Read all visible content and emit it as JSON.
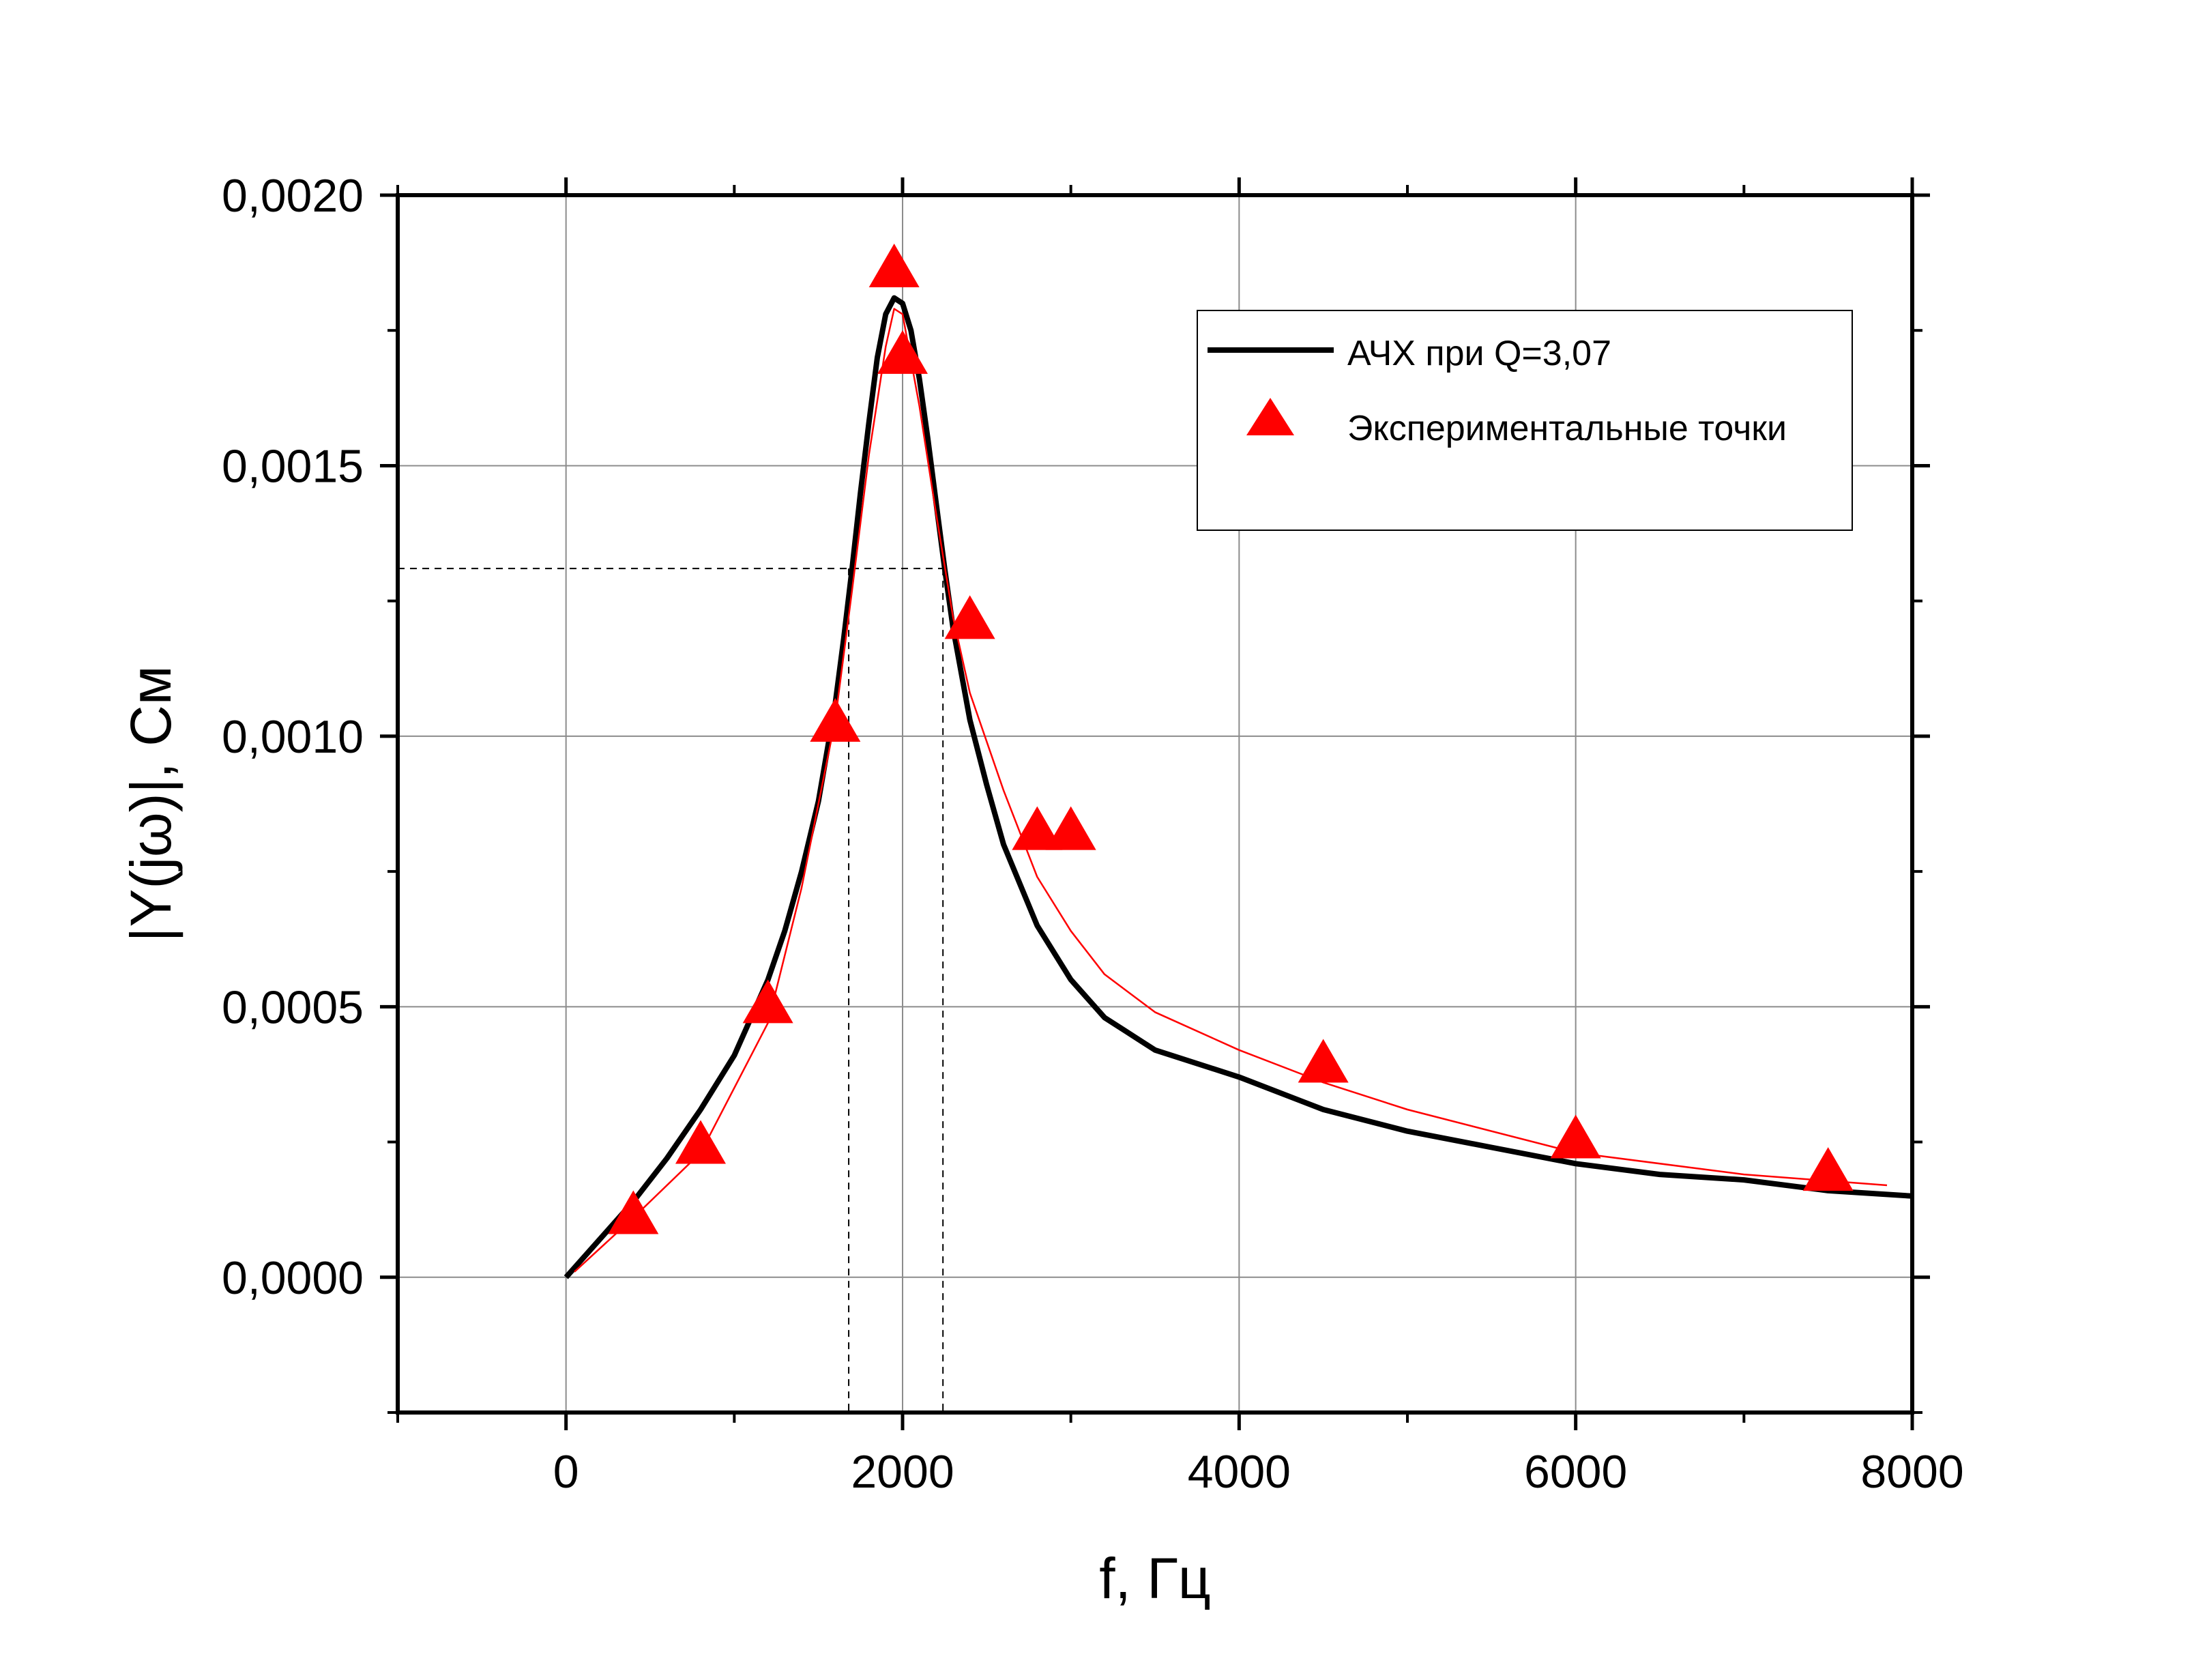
{
  "chart_data": {
    "type": "line",
    "xlabel": "f, Гц",
    "ylabel": "|Y(jω)|, См",
    "xlim": [
      -1000,
      8000
    ],
    "ylim": [
      -0.00025,
      0.002
    ],
    "x_ticks": [
      0,
      2000,
      4000,
      6000,
      8000
    ],
    "x_tick_labels": [
      "0",
      "2000",
      "4000",
      "6000",
      "8000"
    ],
    "y_ticks": [
      0,
      0.0005,
      0.001,
      0.0015,
      0.002
    ],
    "y_tick_labels": [
      "0,0000",
      "0,0005",
      "0,0010",
      "0,0015",
      "0,0020"
    ],
    "grid": true,
    "legend_position": "top-right",
    "legend": {
      "line_label": "АЧХ при Q=3,07",
      "points_label": "Экспериментальные точки"
    },
    "series": [
      {
        "name": "АЧХ при Q=3,07",
        "kind": "line",
        "color": "#000000",
        "x": [
          0,
          200,
          400,
          600,
          800,
          1000,
          1100,
          1200,
          1300,
          1400,
          1500,
          1600,
          1650,
          1700,
          1750,
          1800,
          1850,
          1900,
          1950,
          2000,
          2050,
          2100,
          2150,
          2200,
          2250,
          2300,
          2400,
          2500,
          2600,
          2800,
          3000,
          3200,
          3500,
          4000,
          4500,
          5000,
          5500,
          6000,
          6500,
          7000,
          7500,
          8000
        ],
        "y": [
          0,
          7e-05,
          0.00014,
          0.00022,
          0.00031,
          0.00041,
          0.00048,
          0.00055,
          0.00064,
          0.00075,
          0.00088,
          0.00106,
          0.00118,
          0.00131,
          0.00145,
          0.00158,
          0.0017,
          0.00178,
          0.00181,
          0.0018,
          0.00175,
          0.00166,
          0.00155,
          0.00143,
          0.00131,
          0.0012,
          0.00103,
          0.00091,
          0.0008,
          0.00065,
          0.00055,
          0.00048,
          0.00042,
          0.00037,
          0.00031,
          0.00027,
          0.00024,
          0.00021,
          0.00019,
          0.00018,
          0.00016,
          0.00015
        ]
      },
      {
        "name": "",
        "kind": "fit",
        "color": "#ff0000",
        "x": [
          50,
          400,
          800,
          1200,
          1400,
          1600,
          1700,
          1800,
          1900,
          1950,
          2000,
          2100,
          2200,
          2300,
          2400,
          2600,
          2800,
          3000,
          3200,
          3500,
          4000,
          4500,
          5000,
          6000,
          7000,
          7850
        ],
        "y": [
          1e-05,
          0.00011,
          0.00023,
          0.00047,
          0.00072,
          0.00103,
          0.00127,
          0.00152,
          0.00172,
          0.00179,
          0.00178,
          0.00161,
          0.00141,
          0.00122,
          0.00108,
          0.0009,
          0.00074,
          0.00064,
          0.00056,
          0.00049,
          0.00042,
          0.00036,
          0.00031,
          0.00023,
          0.00019,
          0.00017
        ]
      },
      {
        "name": "Экспериментальные точки",
        "kind": "scatter",
        "color": "#ff0000",
        "x": [
          400,
          800,
          1200,
          1600,
          1950,
          2000,
          2400,
          2800,
          3000,
          4500,
          6000,
          7500
        ],
        "y": [
          0.00011,
          0.00024,
          0.0005,
          0.00102,
          0.00186,
          0.0017,
          0.00121,
          0.00082,
          0.00082,
          0.00039,
          0.00025,
          0.00019
        ]
      }
    ],
    "annotations": {
      "level_y": 0.00131,
      "band_x": [
        1680,
        2240
      ]
    }
  }
}
